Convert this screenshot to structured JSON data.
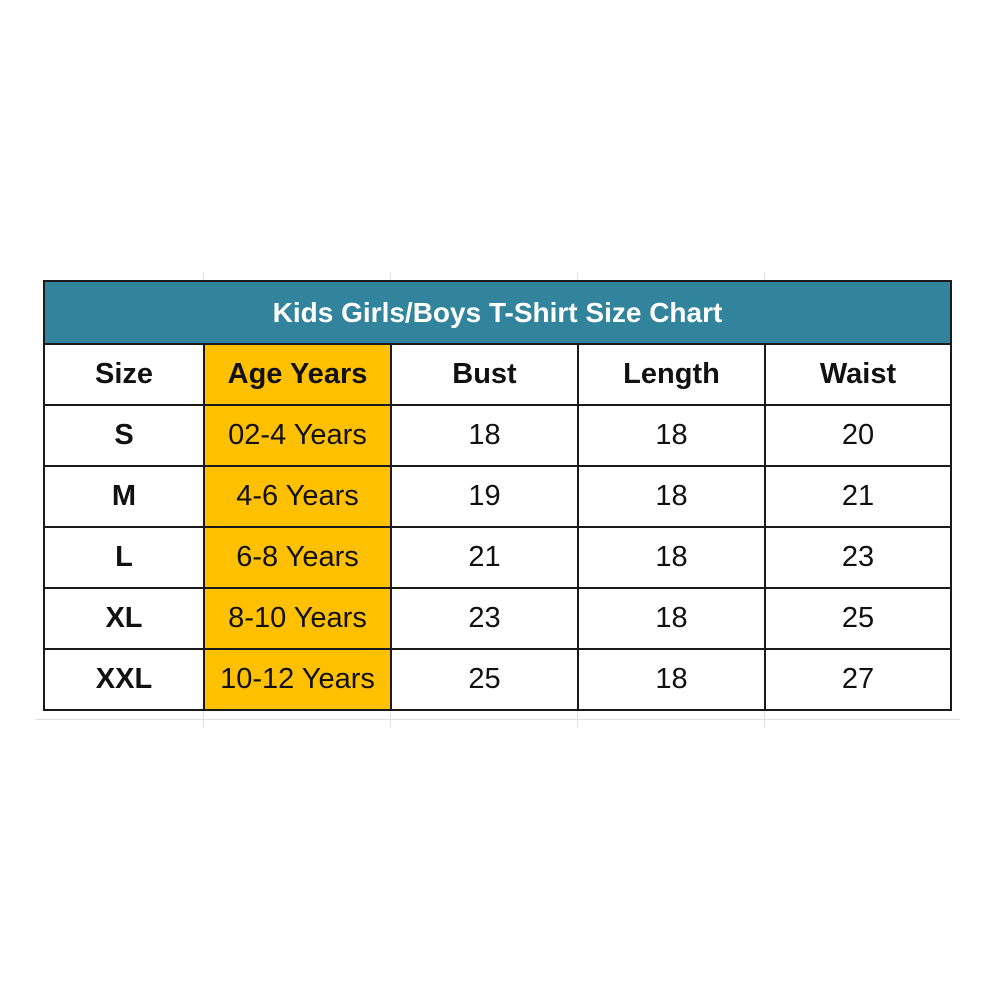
{
  "title": "Kids Girls/Boys T-Shirt Size Chart",
  "headers": [
    "Size",
    "Age Years",
    "Bust",
    "Length",
    "Waist"
  ],
  "rows": [
    [
      "S",
      "02-4 Years",
      "18",
      "18",
      "20"
    ],
    [
      "M",
      "4-6 Years",
      "19",
      "18",
      "21"
    ],
    [
      "L",
      "6-8 Years",
      "21",
      "18",
      "23"
    ],
    [
      "XL",
      "8-10 Years",
      "23",
      "18",
      "25"
    ],
    [
      "XXL",
      "10-12 Years",
      "25",
      "18",
      "27"
    ]
  ],
  "colors": {
    "title_bg": "#31849b",
    "age_column_bg": "#ffc000"
  }
}
